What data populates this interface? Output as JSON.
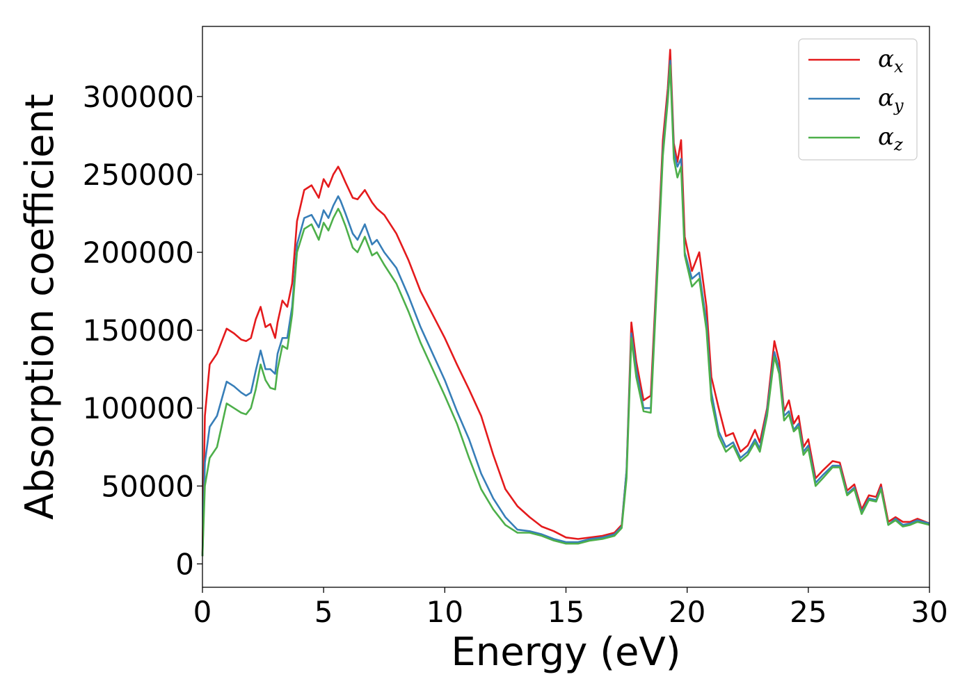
{
  "chart_data": {
    "type": "line",
    "xlabel": "Energy (eV)",
    "ylabel": "Absorption coefficient",
    "xlim": [
      0,
      30
    ],
    "ylim": [
      -15000,
      345000
    ],
    "xticks": [
      "0",
      "5",
      "10",
      "15",
      "20",
      "25",
      "30"
    ],
    "yticks": [
      "0",
      "50000",
      "100000",
      "150000",
      "200000",
      "250000",
      "300000"
    ],
    "grid": false,
    "legend_position": "top-right",
    "x": [
      0.0,
      0.1,
      0.3,
      0.6,
      1.0,
      1.3,
      1.6,
      1.8,
      2.0,
      2.2,
      2.4,
      2.6,
      2.8,
      3.0,
      3.1,
      3.3,
      3.5,
      3.7,
      3.9,
      4.2,
      4.5,
      4.8,
      5.0,
      5.2,
      5.4,
      5.6,
      5.7,
      5.9,
      6.2,
      6.4,
      6.7,
      7.0,
      7.2,
      7.5,
      8.0,
      8.5,
      9.0,
      9.5,
      10.0,
      10.5,
      11.0,
      11.5,
      12.0,
      12.5,
      13.0,
      13.5,
      14.0,
      14.5,
      15.0,
      15.5,
      16.0,
      16.5,
      17.0,
      17.3,
      17.5,
      17.7,
      17.9,
      18.2,
      18.5,
      18.8,
      19.0,
      19.2,
      19.3,
      19.45,
      19.6,
      19.75,
      19.9,
      20.2,
      20.5,
      20.8,
      21.0,
      21.3,
      21.6,
      21.9,
      22.2,
      22.5,
      22.8,
      23.0,
      23.3,
      23.6,
      23.8,
      24.0,
      24.2,
      24.4,
      24.6,
      24.8,
      25.0,
      25.3,
      25.6,
      26.0,
      26.3,
      26.6,
      26.9,
      27.2,
      27.5,
      27.8,
      28.0,
      28.3,
      28.6,
      28.9,
      29.2,
      29.5,
      30.0
    ],
    "series": [
      {
        "name": "α_x",
        "legend_main": "α",
        "legend_sub": "x",
        "color": "#e41a1c",
        "values": [
          5000,
          95000,
          128000,
          135000,
          151000,
          148000,
          144000,
          143000,
          145000,
          157000,
          165000,
          152000,
          154000,
          145000,
          155000,
          169000,
          165000,
          180000,
          220000,
          240000,
          243000,
          235000,
          247000,
          242000,
          250000,
          255000,
          252000,
          245000,
          235000,
          234000,
          240000,
          232000,
          228000,
          224000,
          212000,
          195000,
          175000,
          160000,
          145000,
          128000,
          112000,
          95000,
          70000,
          48000,
          37000,
          30000,
          24000,
          21000,
          17000,
          16000,
          17000,
          18000,
          20000,
          25000,
          60000,
          155000,
          130000,
          105000,
          108000,
          205000,
          272000,
          305000,
          330000,
          270000,
          258000,
          272000,
          210000,
          188000,
          200000,
          165000,
          120000,
          100000,
          82000,
          84000,
          72000,
          76000,
          86000,
          78000,
          100000,
          143000,
          130000,
          98000,
          105000,
          90000,
          95000,
          75000,
          80000,
          55000,
          60000,
          66000,
          65000,
          47000,
          51000,
          35000,
          44000,
          43000,
          51000,
          27000,
          30000,
          27000,
          27000,
          29000,
          26000
        ]
      },
      {
        "name": "α_y",
        "legend_main": "α",
        "legend_sub": "y",
        "color": "#377eb8",
        "values": [
          5000,
          65000,
          88000,
          95000,
          117000,
          114000,
          110000,
          108000,
          110000,
          124000,
          137000,
          125000,
          125000,
          122000,
          135000,
          145000,
          145000,
          165000,
          205000,
          222000,
          224000,
          216000,
          227000,
          222000,
          230000,
          236000,
          233000,
          225000,
          212000,
          208000,
          218000,
          205000,
          208000,
          200000,
          190000,
          172000,
          152000,
          135000,
          118000,
          98000,
          80000,
          58000,
          42000,
          30000,
          22000,
          21000,
          19000,
          16000,
          14000,
          14000,
          16000,
          17000,
          19000,
          24000,
          60000,
          148000,
          125000,
          100000,
          100000,
          200000,
          265000,
          300000,
          323000,
          265000,
          255000,
          260000,
          200000,
          183000,
          187000,
          155000,
          110000,
          85000,
          75000,
          78000,
          68000,
          72000,
          80000,
          74000,
          98000,
          136000,
          125000,
          95000,
          98000,
          86000,
          90000,
          72000,
          76000,
          52000,
          57000,
          63000,
          63000,
          45000,
          49000,
          33000,
          42000,
          41000,
          49000,
          25000,
          29000,
          25000,
          26000,
          28000,
          26000
        ]
      },
      {
        "name": "α_z",
        "legend_main": "α",
        "legend_sub": "z",
        "color": "#4daf4a",
        "values": [
          5000,
          50000,
          68000,
          75000,
          103000,
          100000,
          97000,
          96000,
          100000,
          112000,
          128000,
          118000,
          113000,
          112000,
          125000,
          140000,
          138000,
          160000,
          200000,
          215000,
          218000,
          208000,
          219000,
          214000,
          222000,
          228000,
          225000,
          217000,
          203000,
          200000,
          210000,
          198000,
          200000,
          192000,
          180000,
          162000,
          142000,
          125000,
          108000,
          90000,
          68000,
          48000,
          35000,
          25000,
          20000,
          20000,
          18000,
          15000,
          13000,
          13000,
          15000,
          16000,
          18000,
          23000,
          55000,
          145000,
          120000,
          98000,
          97000,
          195000,
          262000,
          297000,
          320000,
          260000,
          248000,
          255000,
          198000,
          178000,
          183000,
          150000,
          105000,
          82000,
          72000,
          76000,
          66000,
          70000,
          78000,
          72000,
          95000,
          133000,
          122000,
          92000,
          96000,
          85000,
          88000,
          70000,
          74000,
          50000,
          55000,
          62000,
          62000,
          44000,
          48000,
          32000,
          41000,
          40000,
          48000,
          25000,
          28000,
          24000,
          25000,
          27000,
          25000
        ]
      }
    ]
  }
}
